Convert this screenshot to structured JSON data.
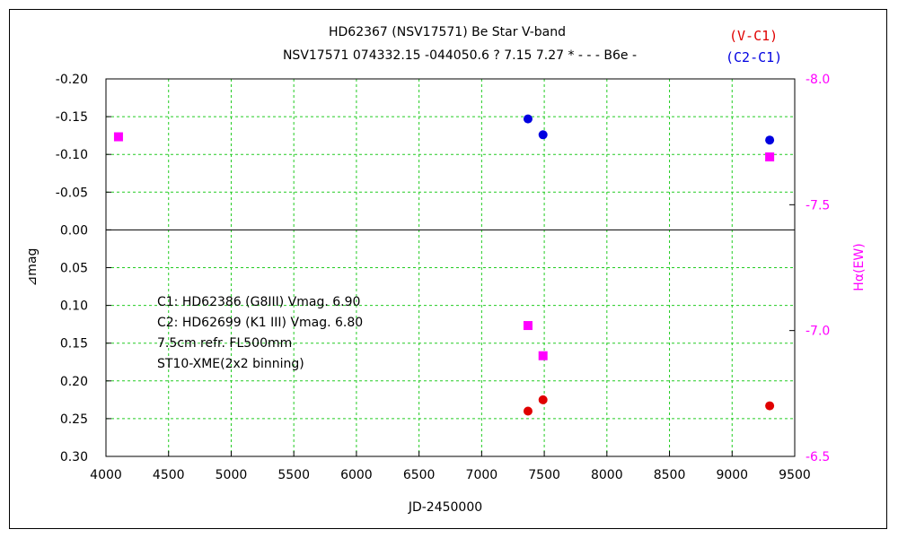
{
  "chart_data": {
    "type": "scatter",
    "title": "HD62367 (NSV17571)    Be Star    V-band",
    "subtitle": "NSV17571 074332.15 -044050.6 ? 7.15 7.27 * - - - B6e -",
    "xlabel": "JD-2450000",
    "ylabel": "⊿mag",
    "y2label": "Hα(EW)",
    "xlim": [
      4000,
      9500
    ],
    "ylim": [
      -0.2,
      0.3
    ],
    "y_inverted": true,
    "y2lim": [
      -8.0,
      -6.5
    ],
    "y2_inverted": false,
    "grid": true,
    "x_ticks": [
      "4000",
      "4500",
      "5000",
      "5500",
      "6000",
      "6500",
      "7000",
      "7500",
      "8000",
      "8500",
      "9000",
      "9500"
    ],
    "y_ticks": [
      "-0.20",
      "-0.15",
      "-0.10",
      "-0.05",
      "0.00",
      "0.05",
      "0.10",
      "0.15",
      "0.20",
      "0.25",
      "0.30"
    ],
    "y2_ticks": [
      "-8.0",
      "-7.5",
      "-7.0",
      "-6.5"
    ],
    "legend": {
      "position": "top-right",
      "items": [
        {
          "label": "(V-C1)",
          "color": "#e00000"
        },
        {
          "label": "(C2-C1)",
          "color": "#0000e0"
        }
      ]
    },
    "annotations": [
      "C1: HD62386 (G8III) Vmag. 6.90",
      "C2: HD62699 (K1 III) Vmag. 6.80",
      "7.5cm refr. FL500mm",
      "ST10-XME(2x2 binning)"
    ],
    "series": [
      {
        "name": "(V-C1)",
        "axis": "left",
        "marker": "circle",
        "color": "#e00000",
        "points": [
          [
            7370,
            0.24
          ],
          [
            7490,
            0.225
          ],
          [
            9300,
            0.233
          ]
        ]
      },
      {
        "name": "(C2-C1)",
        "axis": "left",
        "marker": "circle",
        "color": "#0000e0",
        "points": [
          [
            7370,
            -0.147
          ],
          [
            7490,
            -0.126
          ],
          [
            9300,
            -0.119
          ]
        ]
      },
      {
        "axis": "right",
        "marker": "square",
        "color": "#ff00ff",
        "points": [
          [
            4100,
            -7.77
          ],
          [
            7370,
            -7.02
          ],
          [
            7490,
            -6.9
          ],
          [
            9300,
            -7.69
          ]
        ]
      }
    ]
  }
}
